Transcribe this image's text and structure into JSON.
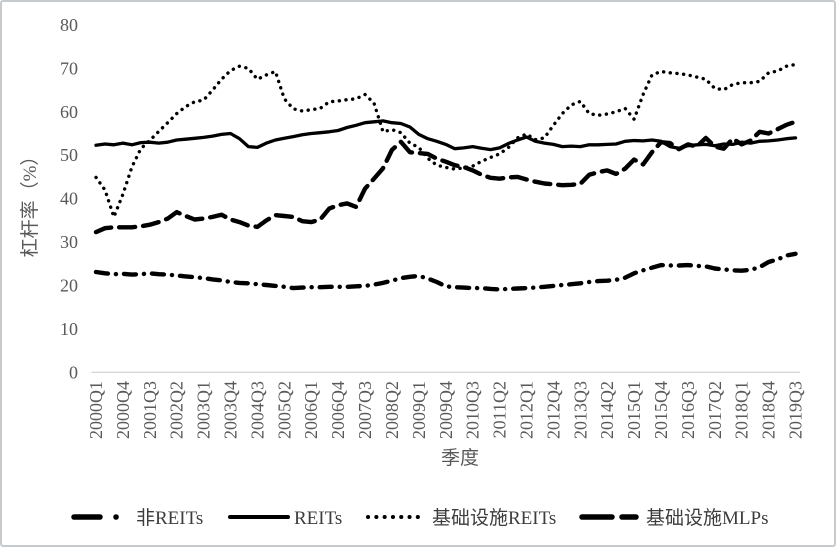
{
  "chart_data": {
    "type": "line",
    "title": "",
    "xlabel": "季度",
    "ylabel": "杠杆率（%）",
    "ylim": [
      0,
      80
    ],
    "yticks": [
      0,
      10,
      20,
      30,
      40,
      50,
      60,
      70,
      80
    ],
    "grid": false,
    "legend_position": "bottom",
    "x_tick_every": 3,
    "x_tick_labels": [
      "2000Q1",
      "2000Q4",
      "2001Q3",
      "2002Q2",
      "2003Q1",
      "2003Q4",
      "2004Q3",
      "2005Q2",
      "2006Q1",
      "2006Q4",
      "2007Q3",
      "2008Q2",
      "2009Q1",
      "2009Q4",
      "2010Q3",
      "2011Q2",
      "2012Q1",
      "2012Q4",
      "2013Q3",
      "2014Q2",
      "2015Q1",
      "2015Q4",
      "2016Q3",
      "2017Q2",
      "2018Q1",
      "2018Q4",
      "2019Q3"
    ],
    "categories": [
      "2000Q1",
      "2000Q2",
      "2000Q3",
      "2000Q4",
      "2001Q1",
      "2001Q2",
      "2001Q3",
      "2001Q4",
      "2002Q1",
      "2002Q2",
      "2002Q3",
      "2002Q4",
      "2003Q1",
      "2003Q2",
      "2003Q3",
      "2003Q4",
      "2004Q1",
      "2004Q2",
      "2004Q3",
      "2004Q4",
      "2005Q1",
      "2005Q2",
      "2005Q3",
      "2005Q4",
      "2006Q1",
      "2006Q2",
      "2006Q3",
      "2006Q4",
      "2007Q1",
      "2007Q2",
      "2007Q3",
      "2007Q4",
      "2008Q1",
      "2008Q2",
      "2008Q3",
      "2008Q4",
      "2009Q1",
      "2009Q2",
      "2009Q3",
      "2009Q4",
      "2010Q1",
      "2010Q2",
      "2010Q3",
      "2010Q4",
      "2011Q1",
      "2011Q2",
      "2011Q3",
      "2011Q4",
      "2012Q1",
      "2012Q2",
      "2012Q3",
      "2012Q4",
      "2013Q1",
      "2013Q2",
      "2013Q3",
      "2013Q4",
      "2014Q1",
      "2014Q2",
      "2014Q3",
      "2014Q4",
      "2015Q1",
      "2015Q2",
      "2015Q3",
      "2015Q4",
      "2016Q1",
      "2016Q2",
      "2016Q3",
      "2016Q4",
      "2017Q1",
      "2017Q2",
      "2017Q3",
      "2017Q4",
      "2018Q1",
      "2018Q2",
      "2018Q3",
      "2018Q4",
      "2019Q1",
      "2019Q2",
      "2019Q3"
    ],
    "series": [
      {
        "name": "非REITs",
        "line_style": "dash-dot",
        "values": [
          23.1,
          22.8,
          22.6,
          22.7,
          22.5,
          22.6,
          22.8,
          22.6,
          22.5,
          22.3,
          22.1,
          21.9,
          21.7,
          21.4,
          21.2,
          20.8,
          20.6,
          20.5,
          20.3,
          20.1,
          19.9,
          19.7,
          19.4,
          19.5,
          19.6,
          19.6,
          19.7,
          19.7,
          19.7,
          19.8,
          19.9,
          20.2,
          20.6,
          21.1,
          21.7,
          22.0,
          22.2,
          21.6,
          20.8,
          19.8,
          19.6,
          19.5,
          19.4,
          19.4,
          19.2,
          19.1,
          19.2,
          19.3,
          19.4,
          19.5,
          19.7,
          19.9,
          20.1,
          20.3,
          20.5,
          20.8,
          21.0,
          21.1,
          21.3,
          21.8,
          22.8,
          23.5,
          24.1,
          24.7,
          24.6,
          24.6,
          24.7,
          24.5,
          24.4,
          23.9,
          23.7,
          23.5,
          23.4,
          23.6,
          24.2,
          25.4,
          26.0,
          26.9,
          27.3
        ]
      },
      {
        "name": "REITs",
        "line_style": "solid",
        "values": [
          52.3,
          52.6,
          52.4,
          52.8,
          52.4,
          52.9,
          53.0,
          52.8,
          53.0,
          53.5,
          53.7,
          53.9,
          54.1,
          54.4,
          54.8,
          55.0,
          53.8,
          52.0,
          51.8,
          52.8,
          53.5,
          53.9,
          54.3,
          54.7,
          55.0,
          55.2,
          55.4,
          55.7,
          56.4,
          56.9,
          57.5,
          57.7,
          57.9,
          57.5,
          57.3,
          56.5,
          54.8,
          53.8,
          53.2,
          52.5,
          51.5,
          51.7,
          52.0,
          51.6,
          51.3,
          51.7,
          52.7,
          53.5,
          54.2,
          53.2,
          52.8,
          52.5,
          52.0,
          52.1,
          52.0,
          52.4,
          52.4,
          52.5,
          52.6,
          53.2,
          53.4,
          53.3,
          53.5,
          53.2,
          52.0,
          51.6,
          52.2,
          52.4,
          52.5,
          52.2,
          52.6,
          52.5,
          53.0,
          52.8,
          53.2,
          53.3,
          53.5,
          53.8,
          54.0
        ]
      },
      {
        "name": "基础设施REITs",
        "line_style": "dotted",
        "values": [
          44.9,
          42.0,
          35.8,
          41.0,
          47.3,
          51.5,
          53.4,
          55.5,
          57.5,
          59.6,
          61.2,
          62.3,
          62.7,
          65.0,
          67.5,
          69.5,
          70.5,
          70.0,
          67.5,
          68.5,
          69.3,
          63.0,
          60.7,
          60.2,
          60.5,
          60.8,
          62.3,
          62.5,
          62.8,
          63.0,
          64.0,
          62.0,
          55.4,
          55.9,
          55.2,
          52.8,
          51.8,
          49.3,
          47.7,
          47.2,
          46.8,
          47.1,
          47.5,
          48.6,
          49.5,
          50.3,
          51.8,
          54.0,
          54.9,
          53.6,
          54.0,
          56.9,
          59.6,
          61.6,
          62.4,
          59.6,
          59.2,
          59.5,
          60.0,
          60.8,
          58.3,
          64.0,
          68.5,
          69.3,
          69.0,
          68.8,
          68.5,
          68.0,
          67.5,
          65.4,
          65.1,
          66.3,
          66.7,
          66.7,
          67.0,
          69.0,
          69.4,
          70.5,
          70.9
        ]
      },
      {
        "name": "基础设施MLPs",
        "line_style": "long-dash",
        "values": [
          32.3,
          33.2,
          33.4,
          33.4,
          33.4,
          33.6,
          34.0,
          34.6,
          35.4,
          36.9,
          36.0,
          35.2,
          35.4,
          35.8,
          36.3,
          35.2,
          34.6,
          33.8,
          33.5,
          35.0,
          36.2,
          36.0,
          35.8,
          34.8,
          34.6,
          35.2,
          37.7,
          38.5,
          38.9,
          38.1,
          42.3,
          44.6,
          47.0,
          51.2,
          53.1,
          50.7,
          50.5,
          50.3,
          49.2,
          48.5,
          47.7,
          47.3,
          46.5,
          45.5,
          44.8,
          44.6,
          44.9,
          45.0,
          44.4,
          43.9,
          43.5,
          43.3,
          43.1,
          43.2,
          43.4,
          45.5,
          46.1,
          46.5,
          45.7,
          46.9,
          49.0,
          47.9,
          50.7,
          53.0,
          52.8,
          51.4,
          52.5,
          52.0,
          54.0,
          52.0,
          51.5,
          53.8,
          52.5,
          53.4,
          55.4,
          55.0,
          56.0,
          57.0,
          57.7
        ]
      }
    ],
    "colors": {
      "line": "#000000",
      "axis_line": "#d6d6d6",
      "tick_text": "#595959",
      "axis_title_text": "#595959",
      "legend_text": "#3d3d3d",
      "frame_border": "#c6cacd",
      "background": "#ffffff"
    }
  }
}
